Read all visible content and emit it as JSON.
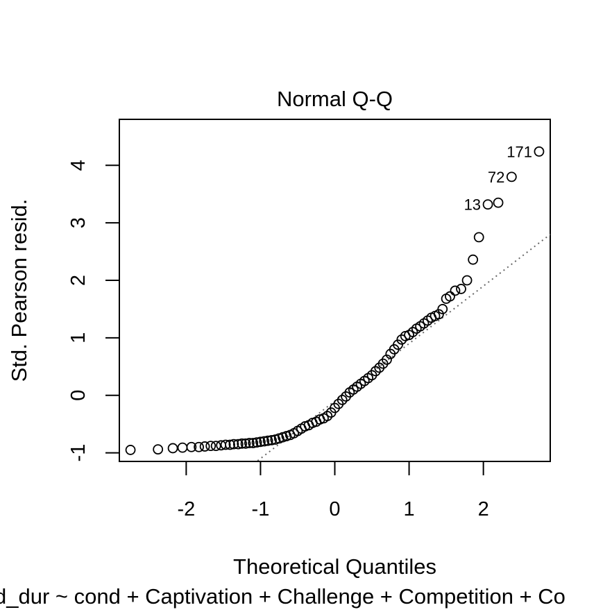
{
  "chart_data": {
    "type": "scatter",
    "title": "Normal Q-Q",
    "xlabel": "Theoretical Quantiles",
    "ylabel": "Std. Pearson resid.",
    "caption": "d_dur ~ cond + Captivation + Challenge + Competition + Co",
    "xlim": [
      -2.9,
      2.9
    ],
    "ylim": [
      -1.15,
      4.8
    ],
    "x_ticks": [
      -2,
      -1,
      0,
      1,
      2
    ],
    "y_ticks": [
      -1,
      0,
      1,
      2,
      3,
      4
    ],
    "x_tick_labels": [
      "-2",
      "-1",
      "0",
      "1",
      "2"
    ],
    "y_tick_labels": [
      "-1",
      "0",
      "1",
      "2",
      "3",
      "4"
    ],
    "grid": false,
    "reference_line": {
      "slope": 1.0,
      "intercept": -0.1,
      "style": "dotted",
      "color": "#666666"
    },
    "series": [
      {
        "marker": "open-circle",
        "x": [
          -2.75,
          -2.38,
          -2.18,
          -2.05,
          -1.93,
          -1.83,
          -1.75,
          -1.67,
          -1.6,
          -1.53,
          -1.47,
          -1.41,
          -1.36,
          -1.3,
          -1.25,
          -1.2,
          -1.15,
          -1.1,
          -1.05,
          -1.0,
          -0.95,
          -0.9,
          -0.85,
          -0.8,
          -0.75,
          -0.7,
          -0.65,
          -0.6,
          -0.55,
          -0.5,
          -0.45,
          -0.4,
          -0.35,
          -0.3,
          -0.25,
          -0.2,
          -0.15,
          -0.1,
          -0.05,
          0.0,
          0.05,
          0.1,
          0.15,
          0.2,
          0.25,
          0.3,
          0.35,
          0.4,
          0.45,
          0.5,
          0.55,
          0.6,
          0.65,
          0.7,
          0.75,
          0.8,
          0.85,
          0.9,
          0.95,
          1.0,
          1.05,
          1.1,
          1.15,
          1.2,
          1.25,
          1.3,
          1.35,
          1.4,
          1.45,
          1.5,
          1.55,
          1.62,
          1.7,
          1.78,
          1.86,
          1.94,
          2.06,
          2.2,
          2.38,
          2.75
        ],
        "y": [
          -0.95,
          -0.94,
          -0.92,
          -0.91,
          -0.9,
          -0.9,
          -0.89,
          -0.88,
          -0.88,
          -0.87,
          -0.86,
          -0.86,
          -0.85,
          -0.85,
          -0.84,
          -0.84,
          -0.83,
          -0.83,
          -0.82,
          -0.81,
          -0.8,
          -0.79,
          -0.78,
          -0.77,
          -0.75,
          -0.73,
          -0.71,
          -0.69,
          -0.66,
          -0.62,
          -0.58,
          -0.54,
          -0.52,
          -0.48,
          -0.46,
          -0.42,
          -0.4,
          -0.36,
          -0.3,
          -0.22,
          -0.15,
          -0.08,
          -0.02,
          0.05,
          0.1,
          0.15,
          0.2,
          0.25,
          0.3,
          0.35,
          0.42,
          0.48,
          0.55,
          0.62,
          0.72,
          0.8,
          0.88,
          0.97,
          1.03,
          1.05,
          1.1,
          1.16,
          1.2,
          1.25,
          1.3,
          1.35,
          1.38,
          1.41,
          1.5,
          1.68,
          1.72,
          1.82,
          1.85,
          2.0,
          2.36,
          2.75,
          3.32,
          3.35,
          3.8,
          4.24
        ]
      }
    ],
    "annotations": [
      {
        "text": "171",
        "x": 2.75,
        "y": 4.24
      },
      {
        "text": "72",
        "x": 2.38,
        "y": 3.8
      },
      {
        "text": "13",
        "x": 2.06,
        "y": 3.32
      }
    ]
  }
}
